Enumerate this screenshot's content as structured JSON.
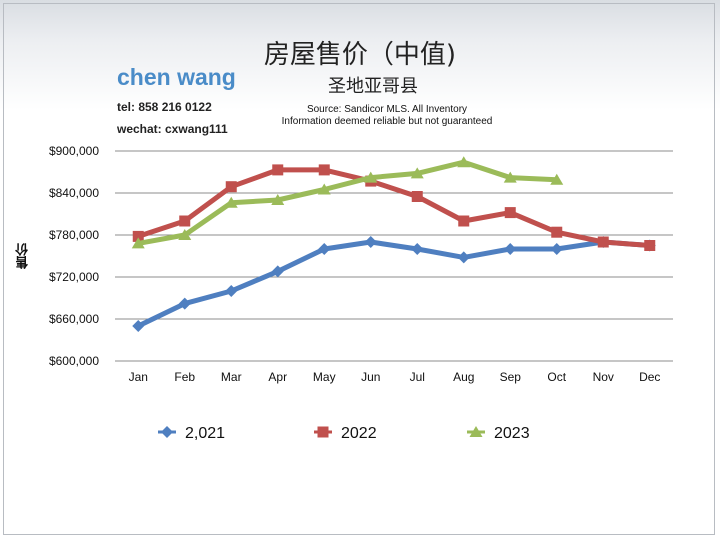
{
  "header": {
    "title": "房屋售价（中值)",
    "subtitle": "圣地亚哥县",
    "agent_name": "chen wang",
    "tel": "tel: 858 216 0122",
    "wechat": "wechat: cxwang111",
    "source_line1": "Source: Sandicor MLS. All Inventory",
    "source_line2": "Information deemed reliable but not guaranteed"
  },
  "chart_data": {
    "type": "line",
    "title": "房屋售价（中值)",
    "subtitle": "圣地亚哥县",
    "ylabel": "售价",
    "xlabel": "",
    "categories": [
      "Jan",
      "Feb",
      "Mar",
      "Apr",
      "May",
      "Jun",
      "Jul",
      "Aug",
      "Sep",
      "Oct",
      "Nov",
      "Dec"
    ],
    "ylim": [
      600000,
      900000
    ],
    "yticks": [
      600000,
      660000,
      720000,
      780000,
      840000,
      900000
    ],
    "ytick_labels": [
      "$600,000",
      "$660,000",
      "$720,000",
      "$780,000",
      "$840,000",
      "$900,000"
    ],
    "grid": true,
    "legend_position": "bottom",
    "series": [
      {
        "name": "2,021",
        "color": "#4f7fc0",
        "marker": "diamond",
        "values": [
          650000,
          682000,
          700000,
          728000,
          760000,
          770000,
          760000,
          748000,
          760000,
          760000,
          770000,
          765000
        ]
      },
      {
        "name": "2022",
        "color": "#c0504d",
        "marker": "square",
        "values": [
          778000,
          800000,
          849000,
          873000,
          873000,
          857000,
          835000,
          800000,
          812000,
          784000,
          770000,
          765000
        ]
      },
      {
        "name": "2023",
        "color": "#9bbb59",
        "marker": "triangle",
        "values": [
          768000,
          780000,
          826000,
          830000,
          845000,
          862000,
          868000,
          884000,
          862000,
          859000,
          null,
          null
        ]
      }
    ]
  }
}
